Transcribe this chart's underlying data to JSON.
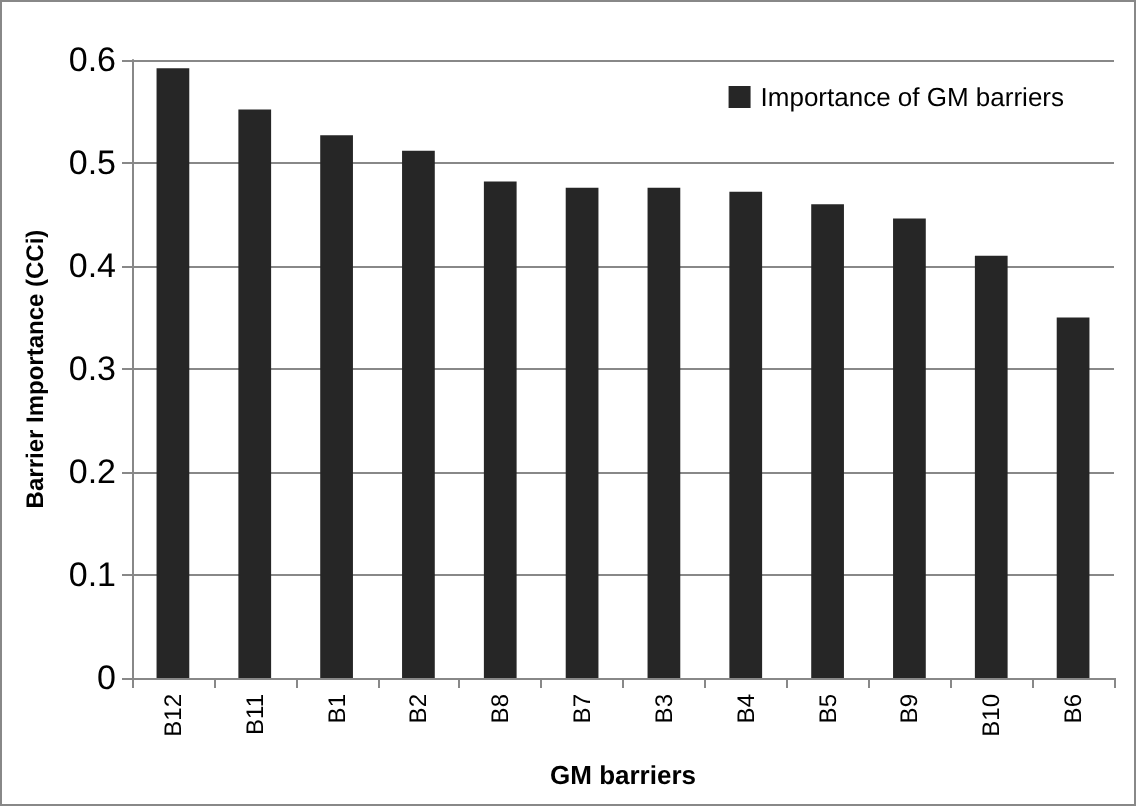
{
  "chart_data": {
    "type": "bar",
    "xlabel": "GM barriers",
    "ylabel": "Barrier Importance (CCi)",
    "categories": [
      "B12",
      "B11",
      "B1",
      "B2",
      "B8",
      "B7",
      "B3",
      "B4",
      "B5",
      "B9",
      "B10",
      "B6"
    ],
    "series": [
      {
        "name": "Importance of GM barriers",
        "color": "#262626",
        "values": [
          0.592,
          0.552,
          0.527,
          0.512,
          0.482,
          0.476,
          0.476,
          0.472,
          0.46,
          0.446,
          0.41,
          0.35
        ]
      }
    ],
    "ylim": [
      0,
      0.6
    ],
    "yticks": [
      0,
      0.1,
      0.2,
      0.3,
      0.4,
      0.5,
      0.6
    ],
    "grid": "y",
    "legend": "top right"
  }
}
